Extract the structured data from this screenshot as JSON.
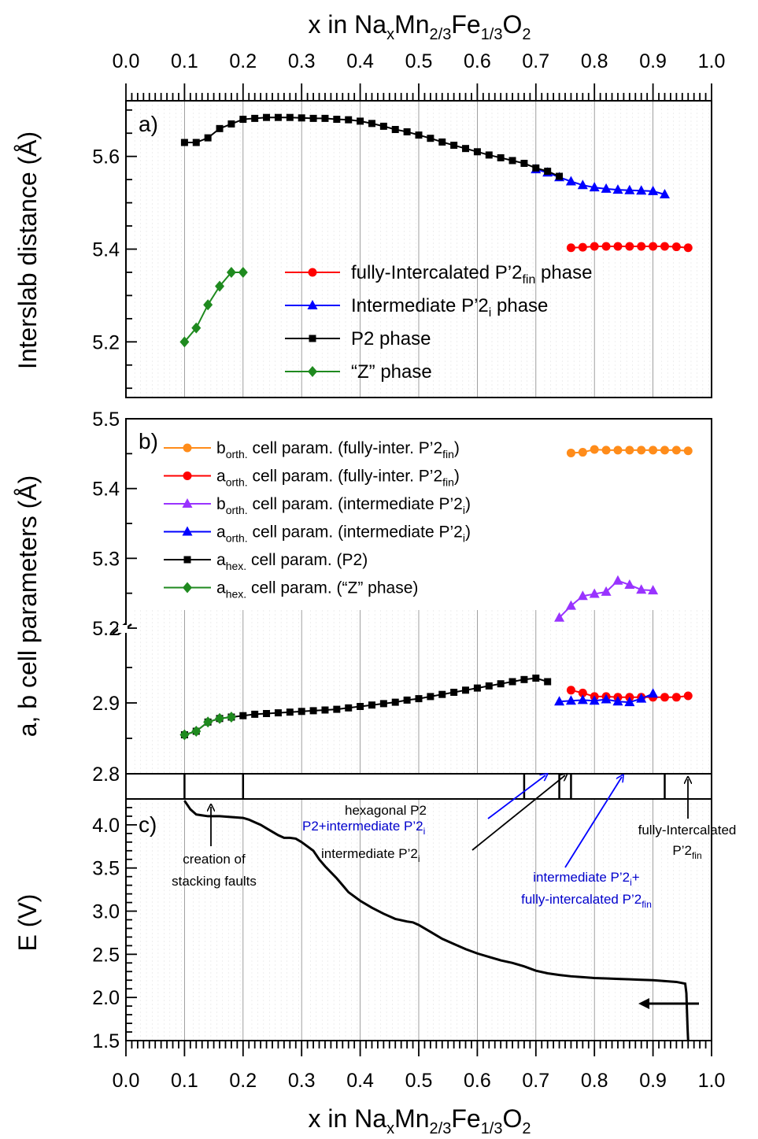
{
  "figure": {
    "top_xlabel": {
      "base": "x in Na",
      "x_sub": "x",
      "mid1": "Mn",
      "sub1": "2/3",
      "mid2": "Fe",
      "sub2": "1/3",
      "end": "O",
      "sub3": "2"
    },
    "bottom_xlabel": {
      "base": "x in Na",
      "x_sub": "x",
      "mid1": "Mn",
      "sub1": "2/3",
      "mid2": "Fe",
      "sub2": "1/3",
      "end": "O",
      "sub3": "2"
    },
    "x_ticks": [
      "0.0",
      "0.1",
      "0.2",
      "0.3",
      "0.4",
      "0.5",
      "0.6",
      "0.7",
      "0.8",
      "0.9",
      "1.0"
    ],
    "colors": {
      "red": "#ff0000",
      "blue": "#0000ff",
      "black": "#000000",
      "green": "#1f8a1f",
      "orange": "#ff8c1a",
      "purple": "#9933ff",
      "annot_blue": "#0000cc"
    }
  },
  "chart_data": [
    {
      "panel": "a)",
      "type": "line",
      "xlabel": "x in NaxMn2/3Fe1/3O2",
      "ylabel": "Interslab distance (Å)",
      "xlim": [
        0.0,
        1.0
      ],
      "ylim": [
        5.08,
        5.72
      ],
      "yticks": [
        "5.2",
        "5.4",
        "5.6"
      ],
      "legend_position": "center",
      "series": [
        {
          "name": "fully-Intercalated  P’2fin phase",
          "legend": {
            "pre": "fully-Intercalated  P’2",
            "sub": "fin",
            "post": " phase"
          },
          "color": "#ff0000",
          "marker": "circle",
          "x": [
            0.76,
            0.78,
            0.8,
            0.82,
            0.84,
            0.86,
            0.88,
            0.9,
            0.92,
            0.94,
            0.96
          ],
          "y": [
            5.403,
            5.404,
            5.406,
            5.406,
            5.406,
            5.406,
            5.406,
            5.406,
            5.406,
            5.405,
            5.403
          ]
        },
        {
          "name": "Intermediate P’2i phase",
          "legend": {
            "pre": "Intermediate P’2",
            "sub": "i",
            "post": " phase"
          },
          "color": "#0000ff",
          "marker": "triangle",
          "x": [
            0.7,
            0.72,
            0.74,
            0.76,
            0.78,
            0.8,
            0.82,
            0.84,
            0.86,
            0.88,
            0.9,
            0.92
          ],
          "y": [
            5.572,
            5.565,
            5.555,
            5.546,
            5.538,
            5.533,
            5.53,
            5.528,
            5.527,
            5.526,
            5.525,
            5.518
          ]
        },
        {
          "name": "P2 phase",
          "legend": {
            "pre": "P2 phase",
            "sub": "",
            "post": ""
          },
          "color": "#000000",
          "marker": "square",
          "x": [
            0.1,
            0.12,
            0.14,
            0.16,
            0.18,
            0.2,
            0.22,
            0.24,
            0.26,
            0.28,
            0.3,
            0.32,
            0.34,
            0.36,
            0.38,
            0.4,
            0.42,
            0.44,
            0.46,
            0.48,
            0.5,
            0.52,
            0.54,
            0.56,
            0.58,
            0.6,
            0.62,
            0.64,
            0.66,
            0.68,
            0.7,
            0.72,
            0.74
          ],
          "y": [
            5.63,
            5.63,
            5.64,
            5.66,
            5.67,
            5.68,
            5.682,
            5.684,
            5.684,
            5.684,
            5.683,
            5.682,
            5.682,
            5.68,
            5.679,
            5.676,
            5.671,
            5.665,
            5.658,
            5.653,
            5.646,
            5.639,
            5.631,
            5.624,
            5.617,
            5.61,
            5.603,
            5.597,
            5.591,
            5.585,
            5.575,
            5.568,
            5.557
          ]
        },
        {
          "name": "“Z” phase",
          "legend": {
            "pre": "“Z” phase",
            "sub": "",
            "post": ""
          },
          "color": "#1f8a1f",
          "marker": "diamond",
          "x": [
            0.1,
            0.12,
            0.14,
            0.16,
            0.18,
            0.2
          ],
          "y": [
            5.2,
            5.23,
            5.28,
            5.32,
            5.35,
            5.35
          ]
        }
      ]
    },
    {
      "panel": "b)",
      "type": "line",
      "xlabel": "x in NaxMn2/3Fe1/3O2",
      "ylabel": "a, b cell parameters (Å)",
      "xlim": [
        0.0,
        1.0
      ],
      "ylim_upper": [
        5.2,
        5.5
      ],
      "ylim_lower": [
        2.8,
        3.0
      ],
      "yticks": [
        "5.5",
        "5.4",
        "5.3",
        "5.2",
        "2.9",
        "2.8"
      ],
      "axis_break": true,
      "legend_position": "top-left",
      "series": [
        {
          "name": "borth. cell param. (fully-inter. P’2fin)",
          "legend": {
            "base": "b",
            "sub": "orth.",
            "mid": " cell param. (fully-inter. P’2",
            "sub2": "fin",
            "post": ")"
          },
          "color": "#ff8c1a",
          "marker": "circle",
          "x": [
            0.76,
            0.78,
            0.8,
            0.82,
            0.84,
            0.86,
            0.88,
            0.9,
            0.92,
            0.94,
            0.96
          ],
          "y": [
            5.451,
            5.452,
            5.456,
            5.455,
            5.455,
            5.455,
            5.455,
            5.455,
            5.455,
            5.455,
            5.454
          ]
        },
        {
          "name": "aorth. cell param. (fully-inter. P’2fin)",
          "legend": {
            "base": "a",
            "sub": "orth.",
            "mid": " cell param. (fully-inter. P’2",
            "sub2": "fin",
            "post": ")"
          },
          "color": "#ff0000",
          "marker": "circle",
          "x": [
            0.76,
            0.78,
            0.8,
            0.82,
            0.84,
            0.86,
            0.88,
            0.9,
            0.92,
            0.94,
            0.96
          ],
          "y": [
            2.918,
            2.914,
            2.909,
            2.909,
            2.908,
            2.908,
            2.908,
            2.908,
            2.908,
            2.908,
            2.91
          ]
        },
        {
          "name": "borth. cell param. (intermediate P’2i)",
          "legend": {
            "base": "b",
            "sub": "orth.",
            "mid": " cell param. (intermediate P’2",
            "sub2": "i",
            "post": ")"
          },
          "color": "#9933ff",
          "marker": "triangle",
          "x": [
            0.74,
            0.76,
            0.78,
            0.8,
            0.82,
            0.84,
            0.86,
            0.88,
            0.9
          ],
          "y": [
            5.215,
            5.232,
            5.246,
            5.249,
            5.252,
            5.268,
            5.262,
            5.255,
            5.254
          ]
        },
        {
          "name": "aorth. cell param. (intermediate P’2i)",
          "legend": {
            "base": "a",
            "sub": "orth.",
            "mid": " cell param. (intermediate P’2",
            "sub2": "i",
            "post": ")"
          },
          "color": "#0000ff",
          "marker": "triangle",
          "x": [
            0.74,
            0.76,
            0.78,
            0.8,
            0.82,
            0.84,
            0.86,
            0.88,
            0.9
          ],
          "y": [
            2.902,
            2.903,
            2.904,
            2.903,
            2.905,
            2.902,
            2.901,
            2.906,
            2.913
          ]
        },
        {
          "name": "ahex. cell param. (P2)",
          "legend": {
            "base": "a",
            "sub": "hex.",
            "mid": " cell param. (P2)",
            "sub2": "",
            "post": ""
          },
          "color": "#000000",
          "marker": "square",
          "x": [
            0.1,
            0.12,
            0.14,
            0.16,
            0.18,
            0.2,
            0.22,
            0.24,
            0.26,
            0.28,
            0.3,
            0.32,
            0.34,
            0.36,
            0.38,
            0.4,
            0.42,
            0.44,
            0.46,
            0.48,
            0.5,
            0.52,
            0.54,
            0.56,
            0.58,
            0.6,
            0.62,
            0.64,
            0.66,
            0.68,
            0.7,
            0.72
          ],
          "y": [
            2.855,
            2.86,
            2.873,
            2.878,
            2.88,
            2.882,
            2.884,
            2.885,
            2.886,
            2.887,
            2.888,
            2.889,
            2.89,
            2.891,
            2.893,
            2.895,
            2.897,
            2.899,
            2.901,
            2.904,
            2.906,
            2.909,
            2.912,
            2.915,
            2.918,
            2.921,
            2.924,
            2.927,
            2.93,
            2.933,
            2.935,
            2.93
          ]
        },
        {
          "name": "ahex. cell param. (“Z” phase)",
          "legend": {
            "base": "a",
            "sub": "hex.",
            "mid": " cell param. (“Z” phase)",
            "sub2": "",
            "post": ""
          },
          "color": "#1f8a1f",
          "marker": "diamond",
          "x": [
            0.1,
            0.12,
            0.14,
            0.16,
            0.18
          ],
          "y": [
            2.855,
            2.86,
            2.873,
            2.878,
            2.88
          ]
        }
      ]
    },
    {
      "panel": "c)",
      "type": "line",
      "xlabel": "x in NaxMn2/3Fe1/3O2",
      "ylabel": "E (V)",
      "xlim": [
        0.0,
        1.0
      ],
      "ylim": [
        1.5,
        4.3
      ],
      "yticks": [
        "4.0",
        "3.5",
        "3.0",
        "2.5",
        "2.0",
        "1.5"
      ],
      "series": [
        {
          "name": "discharge curve",
          "color": "#000000",
          "x": [
            0.1,
            0.11,
            0.12,
            0.14,
            0.16,
            0.18,
            0.2,
            0.21,
            0.22,
            0.23,
            0.24,
            0.25,
            0.26,
            0.27,
            0.28,
            0.29,
            0.3,
            0.31,
            0.32,
            0.33,
            0.34,
            0.35,
            0.36,
            0.37,
            0.38,
            0.4,
            0.42,
            0.44,
            0.46,
            0.48,
            0.49,
            0.5,
            0.52,
            0.54,
            0.56,
            0.58,
            0.6,
            0.62,
            0.64,
            0.66,
            0.68,
            0.7,
            0.72,
            0.74,
            0.76,
            0.78,
            0.8,
            0.82,
            0.84,
            0.86,
            0.88,
            0.9,
            0.92,
            0.94,
            0.955,
            0.957,
            0.958,
            0.959,
            0.96
          ],
          "y": [
            4.28,
            4.18,
            4.12,
            4.1,
            4.1,
            4.09,
            4.08,
            4.06,
            4.03,
            4.0,
            3.96,
            3.92,
            3.88,
            3.85,
            3.85,
            3.84,
            3.8,
            3.75,
            3.7,
            3.6,
            3.52,
            3.45,
            3.38,
            3.3,
            3.22,
            3.12,
            3.04,
            2.97,
            2.91,
            2.88,
            2.87,
            2.84,
            2.76,
            2.68,
            2.62,
            2.56,
            2.51,
            2.47,
            2.43,
            2.4,
            2.36,
            2.31,
            2.28,
            2.26,
            2.245,
            2.235,
            2.225,
            2.22,
            2.215,
            2.21,
            2.205,
            2.2,
            2.19,
            2.18,
            2.16,
            2.05,
            1.85,
            1.65,
            1.5
          ]
        }
      ]
    }
  ],
  "phase_bar": {
    "label": "hexagonal P2",
    "dividers": [
      0.1,
      0.2,
      0.68,
      0.74,
      0.76,
      0.92
    ]
  },
  "annotations": {
    "creation_line1": "creation of",
    "creation_line2": "stacking faults",
    "p2_intermediate": {
      "pre": "P2+intermediate P’2",
      "sub": "i"
    },
    "intermediate": {
      "pre": "intermediate P’2",
      "sub": "i"
    },
    "inter_fully_line1": {
      "pre": "intermediate P’2",
      "sub": "i",
      "post": "+"
    },
    "inter_fully_line2": {
      "pre": "fully-intercalated P’2",
      "sub": "fin"
    },
    "fully_line1": "fully-Intercalated",
    "fully_line2": {
      "pre": "P’2",
      "sub": "fin"
    }
  }
}
